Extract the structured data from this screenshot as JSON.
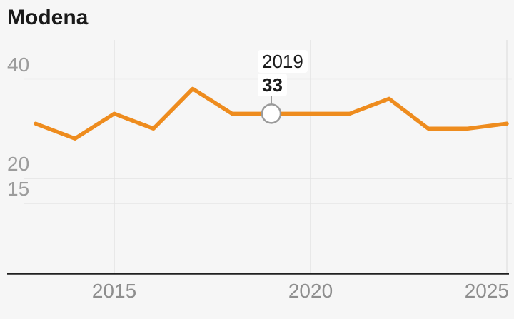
{
  "title": "Modena",
  "colors": {
    "line": "#EE8C1E",
    "background": "#F6F6F6",
    "grid": "#E3E3E3",
    "axis": "#202020",
    "x_tick_text": "#8E8E8E",
    "y_tick_text": "#9C9C9C",
    "title_text": "#1A1A1A",
    "marker_stroke": "#9B9B9B",
    "marker_fill": "#FFFFFF",
    "tooltip_bg": "#FFFFFF",
    "tooltip_text": "#1A1A1A"
  },
  "chart_data": {
    "type": "line",
    "title": "Modena",
    "xlabel": "",
    "ylabel": "",
    "x": [
      2013,
      2014,
      2015,
      2016,
      2017,
      2018,
      2019,
      2020,
      2021,
      2022,
      2023,
      2024,
      2025
    ],
    "values": [
      31,
      28,
      33,
      30,
      38,
      33,
      33,
      33,
      33,
      36,
      30,
      30,
      31
    ],
    "x_ticks": [
      2015,
      2020,
      2025
    ],
    "x_tick_labels": [
      "2015",
      "2020",
      "2025"
    ],
    "y_gridlines": [
      40,
      20,
      15
    ],
    "y_tick_labels": [
      "40",
      "20",
      "15"
    ],
    "grid": true,
    "legend": false,
    "highlight": {
      "x": 2019,
      "label": "2019",
      "value": 33,
      "value_label": "33"
    }
  }
}
